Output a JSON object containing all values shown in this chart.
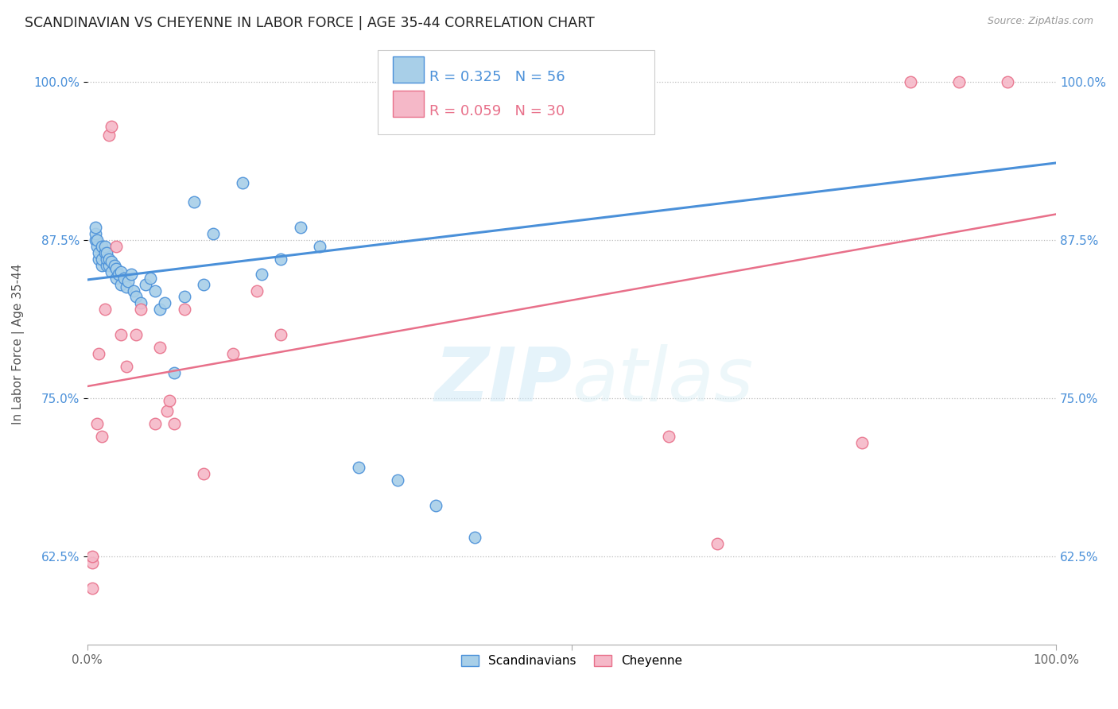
{
  "title": "SCANDINAVIAN VS CHEYENNE IN LABOR FORCE | AGE 35-44 CORRELATION CHART",
  "source": "Source: ZipAtlas.com",
  "ylabel": "In Labor Force | Age 35-44",
  "xlim": [
    0.0,
    1.0
  ],
  "ylim": [
    0.555,
    1.03
  ],
  "yticks": [
    0.625,
    0.75,
    0.875,
    1.0
  ],
  "yticklabels": [
    "62.5%",
    "75.0%",
    "87.5%",
    "100.0%"
  ],
  "xtick_positions": [
    0.0,
    0.5,
    1.0
  ],
  "xticklabels_left": "0.0%",
  "xticklabels_right": "100.0%",
  "legend_label1": "Scandinavians",
  "legend_label2": "Cheyenne",
  "R1": 0.325,
  "N1": 56,
  "R2": 0.059,
  "N2": 30,
  "color_scandinavian": "#a8cfe8",
  "color_cheyenne": "#f5b8c8",
  "color_line1": "#4a90d9",
  "color_line2": "#e8708a",
  "color_legend_blue": "#4a90d9",
  "color_legend_pink": "#e8708a",
  "background_color": "#ffffff",
  "grid_color": "#bbbbbb",
  "watermark_zip": "ZIP",
  "watermark_atlas": "atlas",
  "scandinavian_x": [
    0.008,
    0.008,
    0.008,
    0.01,
    0.01,
    0.012,
    0.012,
    0.015,
    0.015,
    0.015,
    0.018,
    0.018,
    0.02,
    0.02,
    0.02,
    0.022,
    0.022,
    0.025,
    0.025,
    0.028,
    0.03,
    0.03,
    0.032,
    0.035,
    0.035,
    0.038,
    0.04,
    0.042,
    0.045,
    0.048,
    0.05,
    0.055,
    0.06,
    0.065,
    0.07,
    0.075,
    0.08,
    0.09,
    0.1,
    0.11,
    0.12,
    0.13,
    0.16,
    0.18,
    0.2,
    0.22,
    0.24,
    0.28,
    0.32,
    0.36,
    0.4,
    0.45,
    0.48,
    0.5,
    0.52,
    0.55
  ],
  "scandinavian_y": [
    0.875,
    0.88,
    0.885,
    0.87,
    0.875,
    0.86,
    0.865,
    0.855,
    0.86,
    0.87,
    0.865,
    0.87,
    0.855,
    0.86,
    0.865,
    0.855,
    0.86,
    0.85,
    0.858,
    0.855,
    0.845,
    0.852,
    0.848,
    0.84,
    0.85,
    0.845,
    0.838,
    0.842,
    0.848,
    0.835,
    0.83,
    0.825,
    0.84,
    0.845,
    0.835,
    0.82,
    0.825,
    0.77,
    0.83,
    0.905,
    0.84,
    0.88,
    0.92,
    0.848,
    0.86,
    0.885,
    0.87,
    0.695,
    0.685,
    0.665,
    0.64,
    1.0,
    1.0,
    1.0,
    1.0,
    1.0
  ],
  "cheyenne_x": [
    0.005,
    0.005,
    0.005,
    0.01,
    0.012,
    0.015,
    0.018,
    0.022,
    0.025,
    0.03,
    0.035,
    0.04,
    0.05,
    0.055,
    0.07,
    0.075,
    0.082,
    0.085,
    0.09,
    0.1,
    0.12,
    0.15,
    0.175,
    0.2,
    0.6,
    0.65,
    0.8,
    0.85,
    0.9,
    0.95
  ],
  "cheyenne_y": [
    0.6,
    0.62,
    0.625,
    0.73,
    0.785,
    0.72,
    0.82,
    0.958,
    0.965,
    0.87,
    0.8,
    0.775,
    0.8,
    0.82,
    0.73,
    0.79,
    0.74,
    0.748,
    0.73,
    0.82,
    0.69,
    0.785,
    0.835,
    0.8,
    0.72,
    0.635,
    0.715,
    1.0,
    1.0,
    1.0
  ]
}
